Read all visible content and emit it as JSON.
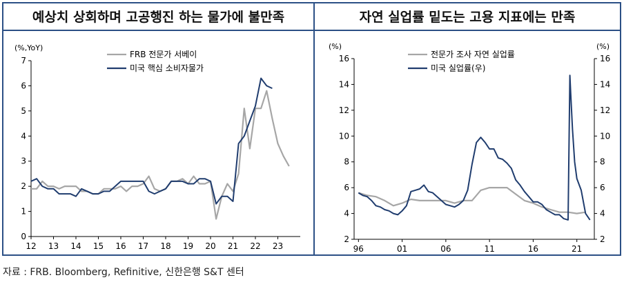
{
  "panels": [
    {
      "title": "예상치 상회하며 고공행진 하는 물가에 불만족"
    },
    {
      "title": "자연 실업률 밑도는 고용 지표에는 만족"
    }
  ],
  "source": "자료 : FRB. Bloomberg, Refinitive, 신한은행 S&T 센터",
  "chart_data": [
    {
      "type": "line",
      "y_unit": "(%,YoY)",
      "ylim": [
        0,
        7
      ],
      "yticks": [
        "0",
        "1",
        "2",
        "3",
        "4",
        "5",
        "6",
        "7"
      ],
      "xlim": [
        2012,
        2024
      ],
      "xticks": [
        {
          "v": 2012,
          "label": "12"
        },
        {
          "v": 2013,
          "label": "13"
        },
        {
          "v": 2014,
          "label": "14"
        },
        {
          "v": 2015,
          "label": "15"
        },
        {
          "v": 2016,
          "label": "16"
        },
        {
          "v": 2017,
          "label": "17"
        },
        {
          "v": 2018,
          "label": "18"
        },
        {
          "v": 2019,
          "label": "19"
        },
        {
          "v": 2020,
          "label": "20"
        },
        {
          "v": 2021,
          "label": "21"
        },
        {
          "v": 2022,
          "label": "22"
        },
        {
          "v": 2023,
          "label": "23"
        }
      ],
      "legend_position": "top-center",
      "series": [
        {
          "name": "FRB 전문가 서베이",
          "color": "#a6a6a6",
          "x": [
            2012.0,
            2012.25,
            2012.5,
            2012.75,
            2013.0,
            2013.25,
            2013.5,
            2013.75,
            2014.0,
            2014.25,
            2014.5,
            2014.75,
            2015.0,
            2015.25,
            2015.5,
            2015.75,
            2016.0,
            2016.25,
            2016.5,
            2016.75,
            2017.0,
            2017.25,
            2017.5,
            2017.75,
            2018.0,
            2018.25,
            2018.5,
            2018.75,
            2019.0,
            2019.25,
            2019.5,
            2019.75,
            2020.0,
            2020.25,
            2020.5,
            2020.75,
            2021.0,
            2021.25,
            2021.5,
            2021.75,
            2022.0,
            2022.25,
            2022.5,
            2022.75,
            2023.0,
            2023.25,
            2023.5
          ],
          "y": [
            1.9,
            1.9,
            2.2,
            2.0,
            2.0,
            1.9,
            2.0,
            2.0,
            2.0,
            1.8,
            1.8,
            1.7,
            1.7,
            1.9,
            1.9,
            1.9,
            2.0,
            1.8,
            2.0,
            2.0,
            2.1,
            2.4,
            1.9,
            1.8,
            1.9,
            2.2,
            2.2,
            2.3,
            2.1,
            2.4,
            2.1,
            2.1,
            2.2,
            0.7,
            1.6,
            2.1,
            1.8,
            2.5,
            5.1,
            3.5,
            5.1,
            5.1,
            5.8,
            4.7,
            3.7,
            3.2,
            2.8
          ]
        },
        {
          "name": "미국 핵심 소비자물가",
          "color": "#1f3c6e",
          "x": [
            2012.0,
            2012.25,
            2012.5,
            2012.75,
            2013.0,
            2013.25,
            2013.5,
            2013.75,
            2014.0,
            2014.25,
            2014.5,
            2014.75,
            2015.0,
            2015.25,
            2015.5,
            2015.75,
            2016.0,
            2016.25,
            2016.5,
            2016.75,
            2017.0,
            2017.25,
            2017.5,
            2017.75,
            2018.0,
            2018.25,
            2018.5,
            2018.75,
            2019.0,
            2019.25,
            2019.5,
            2019.75,
            2020.0,
            2020.25,
            2020.5,
            2020.75,
            2021.0,
            2021.25,
            2021.5,
            2021.75,
            2022.0,
            2022.25,
            2022.5,
            2022.75
          ],
          "y": [
            2.2,
            2.3,
            2.0,
            1.9,
            1.9,
            1.7,
            1.7,
            1.7,
            1.6,
            1.9,
            1.8,
            1.7,
            1.7,
            1.8,
            1.8,
            2.0,
            2.2,
            2.2,
            2.2,
            2.2,
            2.2,
            1.8,
            1.7,
            1.8,
            1.9,
            2.2,
            2.2,
            2.2,
            2.1,
            2.1,
            2.3,
            2.3,
            2.2,
            1.3,
            1.6,
            1.6,
            1.4,
            3.7,
            4.0,
            4.6,
            5.2,
            6.3,
            6.0,
            5.9
          ]
        }
      ]
    },
    {
      "type": "line",
      "y_unit_left": "(%)",
      "y_unit_right": "(%)",
      "ylim": [
        2,
        16
      ],
      "yticks": [
        "2",
        "4",
        "6",
        "8",
        "10",
        "12",
        "14",
        "16"
      ],
      "xlim": [
        1995.5,
        2023
      ],
      "xticks": [
        {
          "v": 1996,
          "label": "96"
        },
        {
          "v": 2001,
          "label": "01"
        },
        {
          "v": 2006,
          "label": "06"
        },
        {
          "v": 2011,
          "label": "11"
        },
        {
          "v": 2016,
          "label": "16"
        },
        {
          "v": 2021,
          "label": "21"
        }
      ],
      "legend_position": "top-center",
      "series": [
        {
          "name": "전문가 조사 자연 실업률",
          "color": "#a6a6a6",
          "x": [
            1996,
            1997,
            1998,
            1999,
            2000,
            2001,
            2002,
            2003,
            2004,
            2005,
            2006,
            2007,
            2008,
            2009,
            2010,
            2011,
            2012,
            2013,
            2014,
            2015,
            2016,
            2017,
            2018,
            2019,
            2020,
            2021,
            2022
          ],
          "y": [
            5.6,
            5.4,
            5.3,
            5.0,
            4.6,
            4.8,
            5.1,
            5.0,
            5.0,
            5.0,
            5.0,
            4.8,
            5.0,
            5.0,
            5.8,
            6.0,
            6.0,
            6.0,
            5.5,
            5.0,
            4.8,
            4.5,
            4.3,
            4.1,
            4.1,
            4.0,
            4.1
          ]
        },
        {
          "name": "미국 실업률(우)",
          "color": "#1f3c6e",
          "x": [
            1996.0,
            1996.5,
            1997.0,
            1997.5,
            1998.0,
            1998.5,
            1999.0,
            1999.5,
            2000.0,
            2000.5,
            2001.0,
            2001.5,
            2002.0,
            2002.5,
            2003.0,
            2003.5,
            2004.0,
            2004.5,
            2005.0,
            2005.5,
            2006.0,
            2006.5,
            2007.0,
            2007.5,
            2008.0,
            2008.5,
            2009.0,
            2009.5,
            2010.0,
            2010.5,
            2011.0,
            2011.5,
            2012.0,
            2012.5,
            2013.0,
            2013.5,
            2014.0,
            2014.5,
            2015.0,
            2015.5,
            2016.0,
            2016.5,
            2017.0,
            2017.5,
            2018.0,
            2018.5,
            2019.0,
            2019.5,
            2020.0,
            2020.2,
            2020.3,
            2020.5,
            2020.75,
            2021.0,
            2021.5,
            2022.0,
            2022.5
          ],
          "y": [
            5.6,
            5.4,
            5.3,
            5.0,
            4.6,
            4.5,
            4.3,
            4.2,
            4.0,
            3.9,
            4.2,
            4.6,
            5.7,
            5.8,
            5.9,
            6.2,
            5.7,
            5.6,
            5.3,
            5.0,
            4.7,
            4.6,
            4.5,
            4.7,
            5.0,
            5.8,
            7.8,
            9.5,
            9.9,
            9.5,
            9.0,
            9.0,
            8.3,
            8.2,
            7.9,
            7.5,
            6.6,
            6.2,
            5.7,
            5.3,
            4.9,
            4.9,
            4.7,
            4.3,
            4.1,
            3.9,
            3.9,
            3.6,
            3.5,
            14.7,
            13.3,
            10.5,
            8.0,
            6.7,
            5.8,
            4.0,
            3.5
          ]
        }
      ]
    }
  ]
}
